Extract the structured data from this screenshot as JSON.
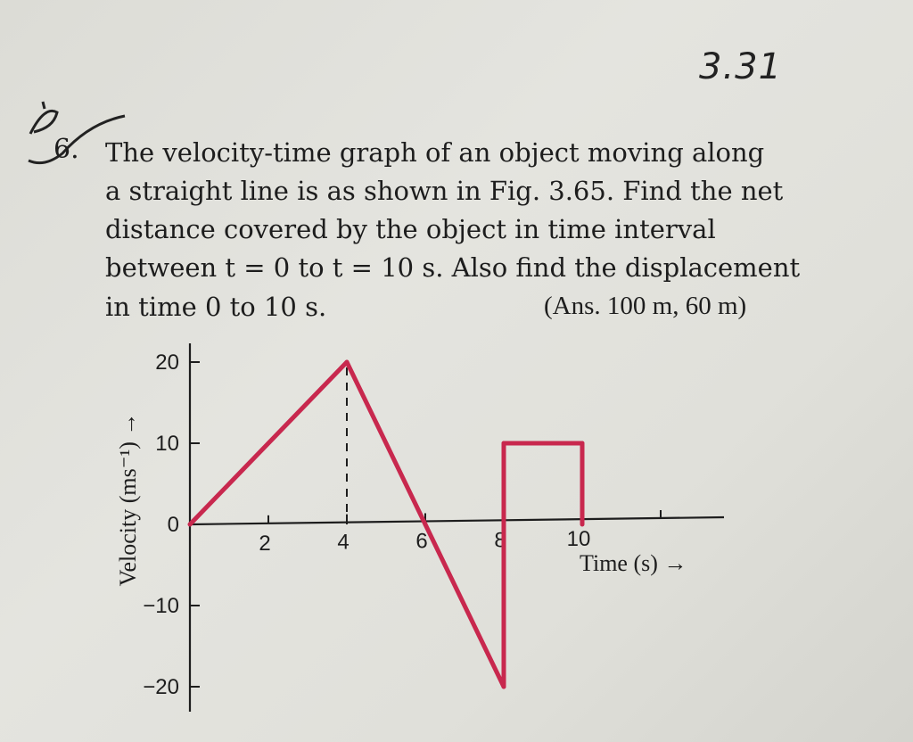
{
  "page": {
    "number": "3.31"
  },
  "question": {
    "number": "6.",
    "lines": [
      "The velocity-time graph of an object moving along",
      "a straight line is as shown in Fig. 3.65. Find the net",
      "distance covered by the object in time interval",
      "between t = 0 to t = 10 s. Also find the displacement",
      "in time 0 to 10 s."
    ],
    "answer": "(Ans. 100 m, 60 m)"
  },
  "colors": {
    "graph_line": "#c8284e",
    "axis": "#1d1d1d"
  },
  "chart_data": {
    "type": "line",
    "xlabel": "Time (s) →",
    "ylabel": "Velocity (ms⁻¹) →",
    "x_ticks": [
      2,
      4,
      6,
      8,
      10
    ],
    "y_ticks": [
      20,
      10,
      0,
      -10,
      -20
    ],
    "xlim": [
      0,
      12
    ],
    "ylim": [
      -20,
      20
    ],
    "series": [
      {
        "points": [
          [
            0,
            0
          ],
          [
            4,
            20
          ],
          [
            6,
            0
          ],
          [
            8,
            -20
          ],
          [
            8,
            10
          ],
          [
            10,
            10
          ],
          [
            10,
            0
          ]
        ]
      }
    ],
    "dashed_guide": {
      "x": 4,
      "from": 0,
      "to": 20
    }
  }
}
